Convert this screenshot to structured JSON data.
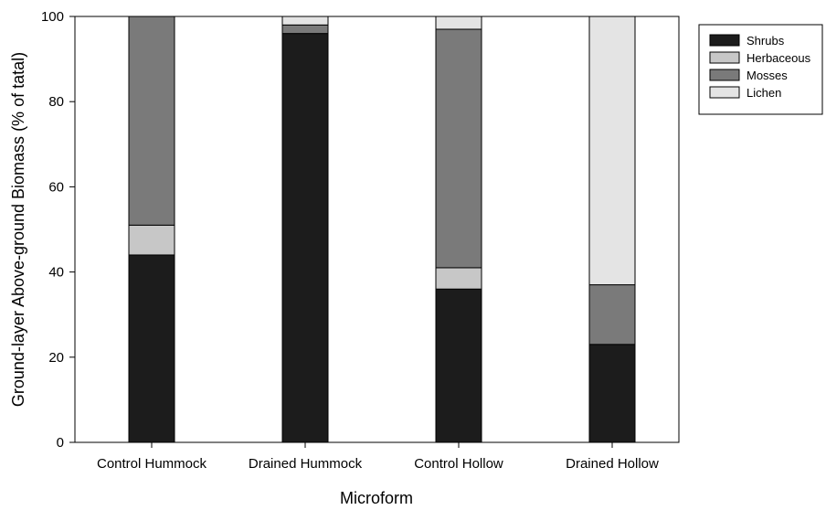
{
  "chart_data": {
    "type": "bar",
    "stacked": true,
    "title": "",
    "xlabel": "Microform",
    "ylabel": "Ground-layer Above-ground Biomass (% of tatal)",
    "ylim": [
      0,
      100
    ],
    "yticks": [
      "0",
      "20",
      "40",
      "60",
      "80",
      "100"
    ],
    "grid": false,
    "legend_position": "top-right",
    "categories": [
      "Control Hummock",
      "Drained Hummock",
      "Control Hollow",
      "Drained Hollow"
    ],
    "series": [
      {
        "name": "Shrubs",
        "color": "#1c1c1c",
        "values": [
          44,
          96,
          36,
          23
        ]
      },
      {
        "name": "Herbaceous",
        "color": "#c7c7c7",
        "values": [
          7,
          0,
          5,
          0
        ]
      },
      {
        "name": "Mosses",
        "color": "#7a7a7a",
        "values": [
          49,
          2,
          56,
          14
        ]
      },
      {
        "name": "Lichen",
        "color": "#e4e4e4",
        "values": [
          0,
          2,
          3,
          63
        ]
      }
    ]
  }
}
